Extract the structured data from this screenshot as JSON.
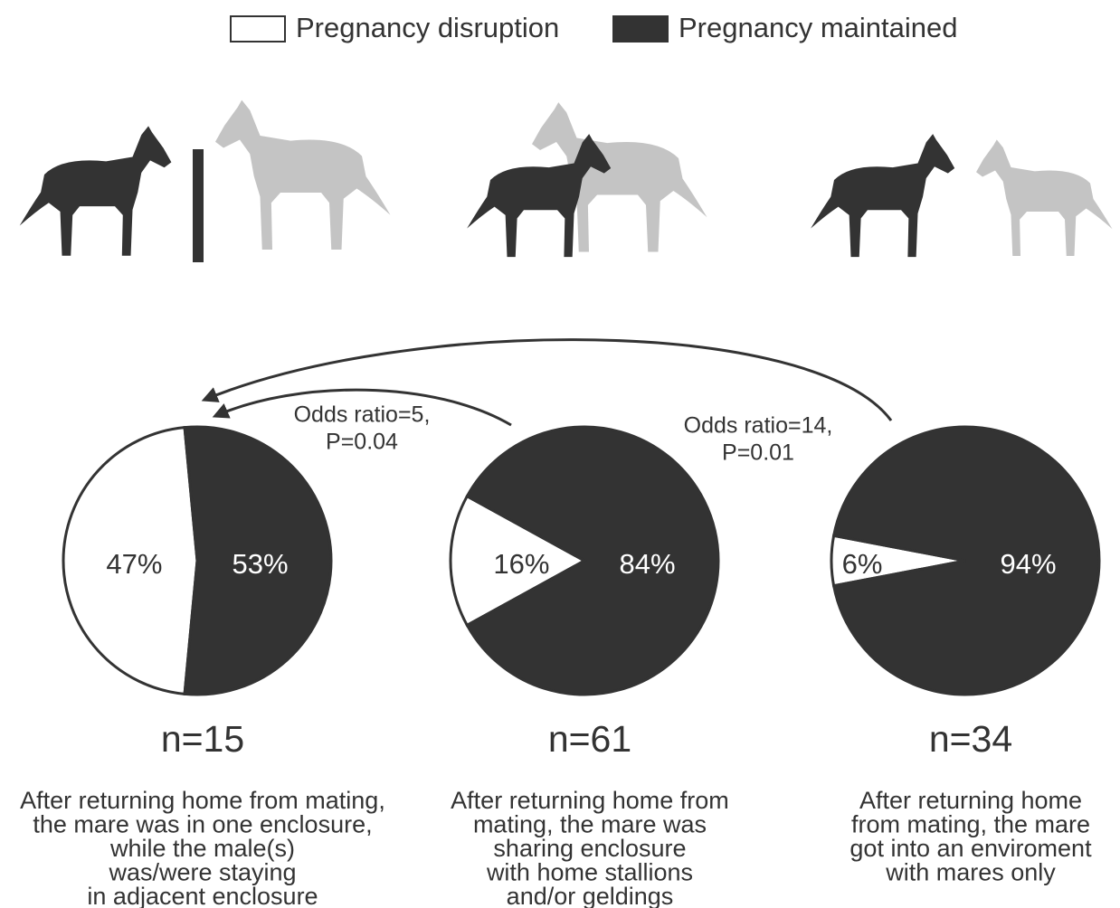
{
  "chart_data": [
    {
      "type": "pie",
      "categories": [
        "Pregnancy disruption",
        "Pregnancy maintained"
      ],
      "values": [
        47,
        53
      ],
      "value_labels": [
        "47%",
        "53%"
      ],
      "colors": [
        "#ffffff",
        "#333333"
      ],
      "label_colors": [
        "#333333",
        "#ffffff"
      ],
      "subtitle": "n=15",
      "caption": [
        "After returning home from mating,",
        "the mare was in one enclosure,",
        "while the male(s)",
        "was/were staying",
        "in adjacent enclosure"
      ]
    },
    {
      "type": "pie",
      "categories": [
        "Pregnancy disruption",
        "Pregnancy maintained"
      ],
      "values": [
        16,
        84
      ],
      "value_labels": [
        "16%",
        "84%"
      ],
      "colors": [
        "#ffffff",
        "#333333"
      ],
      "label_colors": [
        "#333333",
        "#ffffff"
      ],
      "subtitle": "n=61",
      "caption": [
        "After returning home from",
        "mating, the mare was",
        "sharing enclosure",
        "with home stallions",
        "and/or geldings"
      ],
      "annotation": [
        "Odds ratio=5,",
        "P=0.04"
      ]
    },
    {
      "type": "pie",
      "categories": [
        "Pregnancy disruption",
        "Pregnancy maintained"
      ],
      "values": [
        6,
        94
      ],
      "value_labels": [
        "6%",
        "94%"
      ],
      "colors": [
        "#ffffff",
        "#333333"
      ],
      "label_colors": [
        "#333333",
        "#ffffff"
      ],
      "subtitle": "n=34",
      "caption": [
        "After returning home",
        "from mating, the mare",
        "got into an enviroment",
        "with mares only"
      ],
      "annotation": [
        "Odds ratio=14,",
        "P=0.01"
      ]
    }
  ]
}
